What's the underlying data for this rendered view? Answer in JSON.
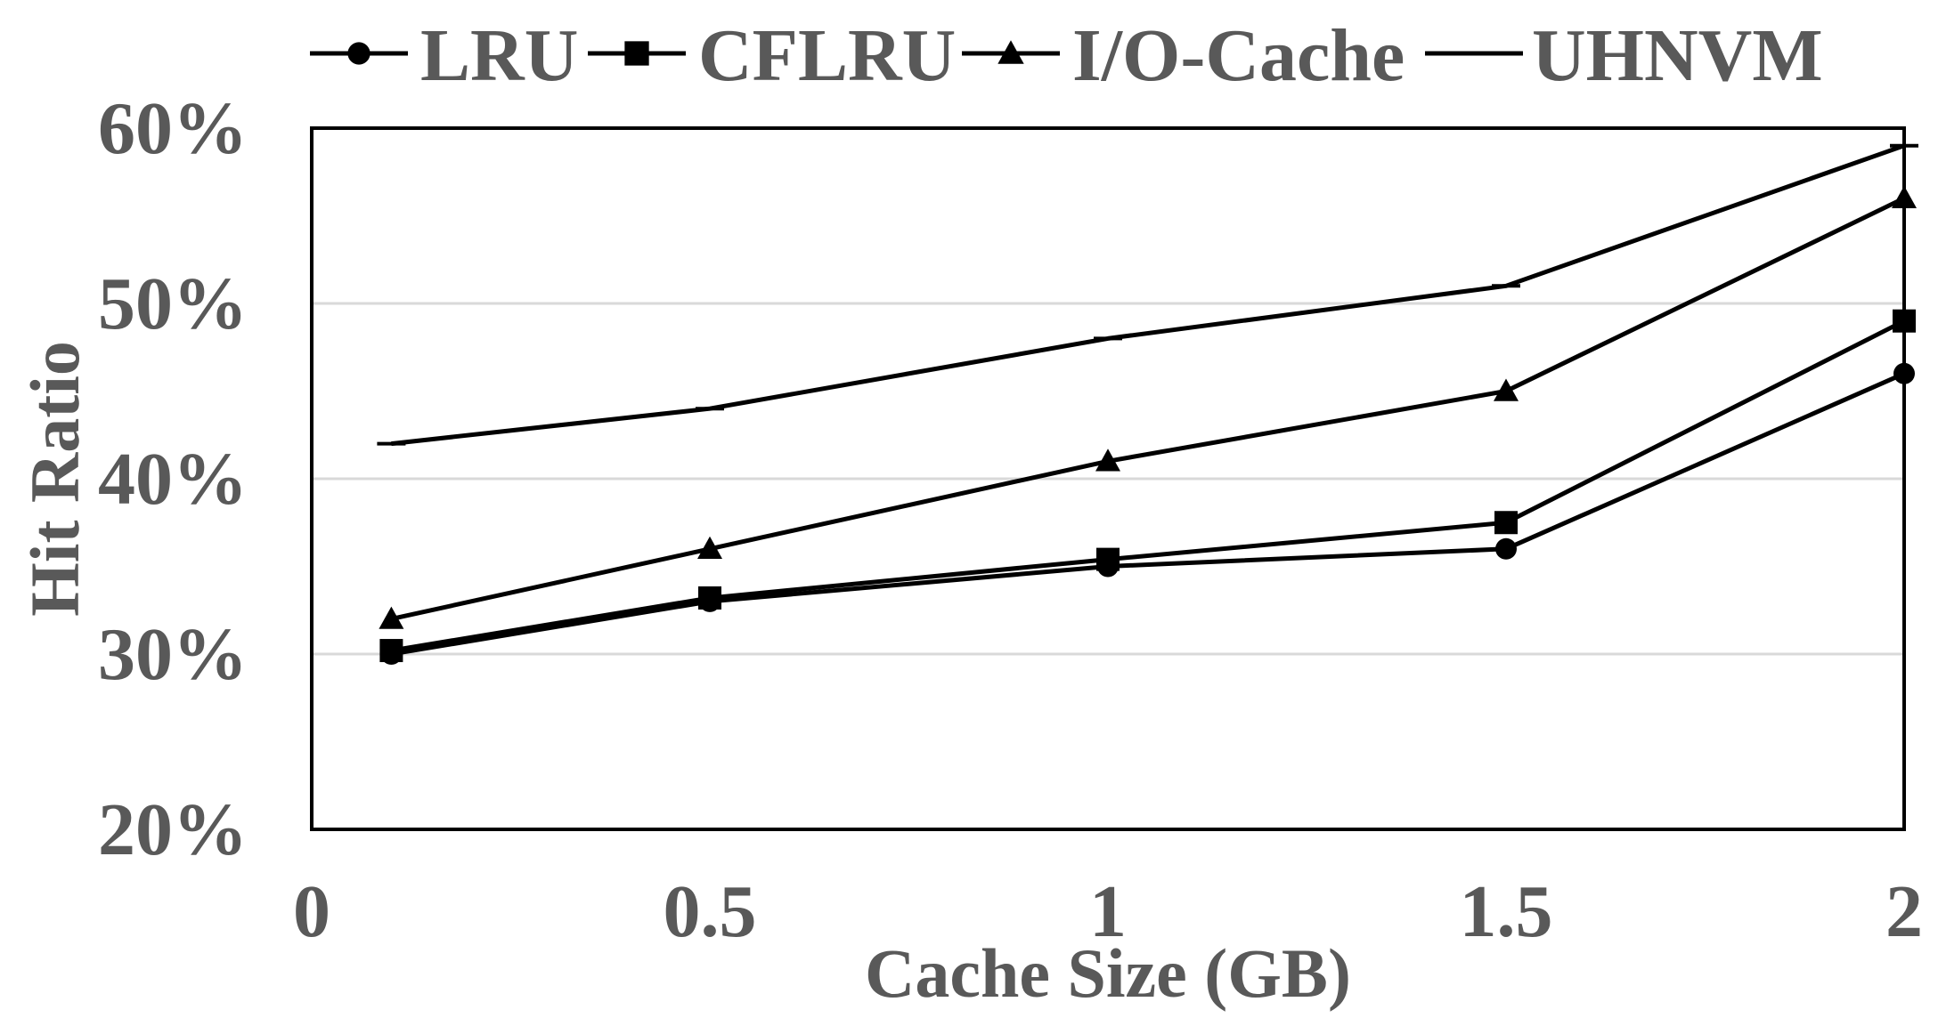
{
  "chart_data": {
    "type": "line",
    "title": "",
    "xlabel": "Cache Size (GB)",
    "ylabel": "Hit Ratio",
    "x": [
      0.1,
      0.5,
      1,
      1.5,
      2
    ],
    "xlim": [
      0,
      2
    ],
    "ylim": [
      20,
      60
    ],
    "xticks": [
      0,
      0.5,
      1,
      1.5,
      2
    ],
    "xtick_labels": [
      "0",
      "0.5",
      "1",
      "1.5",
      "2"
    ],
    "yticks": [
      20,
      30,
      40,
      50,
      60
    ],
    "ytick_labels": [
      "20%",
      "30%",
      "40%",
      "50%",
      "60%"
    ],
    "grid": "horizontal",
    "legend_position": "top",
    "series": [
      {
        "name": "LRU",
        "marker": "circle",
        "values": [
          30,
          33,
          35,
          36,
          46
        ]
      },
      {
        "name": "CFLRU",
        "marker": "square",
        "values": [
          30.2,
          33.2,
          35.4,
          37.5,
          49
        ]
      },
      {
        "name": "I/O-Cache",
        "marker": "triangle",
        "values": [
          32,
          36,
          41,
          45,
          56
        ]
      },
      {
        "name": "UHNVM",
        "marker": "dash",
        "values": [
          42,
          44,
          48,
          51,
          59
        ]
      }
    ],
    "colors": {
      "line": "#000000",
      "text": "#595959",
      "grid": "#d9d9d9",
      "frame": "#000000"
    }
  }
}
